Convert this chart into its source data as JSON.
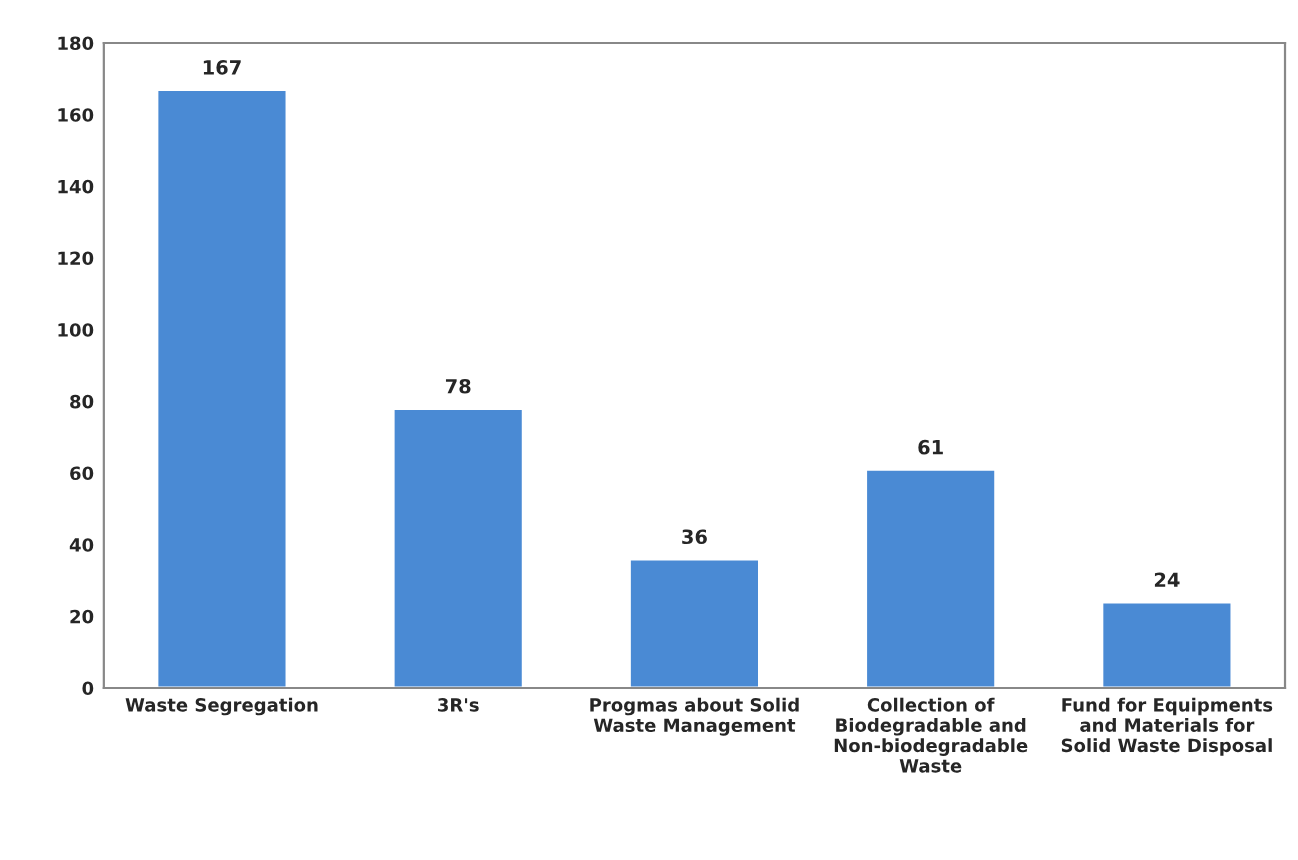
{
  "chart_data": {
    "type": "bar",
    "categories": [
      "Waste Segregation",
      "3R's",
      "Progmas about Solid\nWaste Management",
      "Collection of\nBiodegradable and\nNon-biodegradable\nWaste",
      "Fund for Equipments\nand Materials for\nSolid Waste Disposal"
    ],
    "values": [
      167,
      78,
      36,
      61,
      24
    ],
    "color": "#4a8ad4",
    "ylim": [
      0,
      180
    ],
    "yticks": [
      0,
      20,
      40,
      60,
      80,
      100,
      120,
      140,
      160,
      180
    ],
    "data_labels": true,
    "grid": false,
    "legend": false
  }
}
